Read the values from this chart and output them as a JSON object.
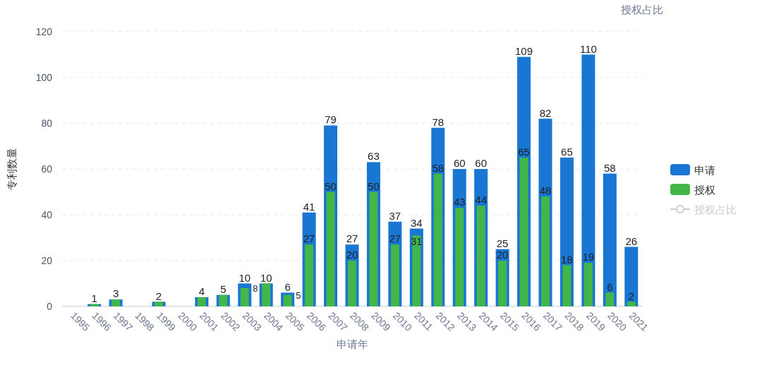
{
  "chart_data": {
    "type": "bar",
    "xlabel": "申请年",
    "ylabel": "专利数量",
    "y2label": "授权占比",
    "categories": [
      "1995",
      "1996",
      "1997",
      "1998",
      "1999",
      "2000",
      "2001",
      "2002",
      "2003",
      "2004",
      "2005",
      "2006",
      "2007",
      "2008",
      "2009",
      "2010",
      "2011",
      "2012",
      "2013",
      "2014",
      "2015",
      "2016",
      "2017",
      "2018",
      "2019",
      "2020",
      "2021"
    ],
    "series": [
      {
        "name": "申请",
        "color": "#1976d2",
        "values": [
          null,
          1,
          3,
          null,
          2,
          null,
          4,
          5,
          10,
          10,
          6,
          41,
          79,
          27,
          63,
          37,
          34,
          78,
          60,
          60,
          25,
          109,
          82,
          65,
          110,
          58,
          26
        ]
      },
      {
        "name": "授权",
        "color": "#43b649",
        "values": [
          null,
          1,
          3,
          null,
          2,
          null,
          4,
          5,
          8,
          10,
          5,
          27,
          50,
          20,
          50,
          27,
          31,
          58,
          43,
          44,
          20,
          65,
          48,
          18,
          19,
          6,
          2
        ],
        "value_labels": [
          null,
          null,
          null,
          null,
          null,
          null,
          null,
          null,
          "8",
          null,
          "5",
          "27",
          "50",
          "20",
          "50",
          "27",
          "31",
          "58",
          "43",
          "44",
          "20",
          "65",
          "48",
          "18",
          "19",
          "6",
          "2"
        ]
      },
      {
        "name": "授权占比",
        "type": "line",
        "color": "#cccccc",
        "marker": "circle",
        "values": [
          null,
          null,
          null,
          null,
          null,
          null,
          null,
          null,
          null,
          null,
          null,
          null,
          null,
          null,
          null,
          null,
          null,
          null,
          null,
          null,
          null,
          null,
          null,
          null,
          null,
          null,
          null
        ]
      }
    ],
    "ylim": [
      0,
      120
    ],
    "yticks": [
      0,
      20,
      40,
      60,
      80,
      100,
      120
    ],
    "grid": "y",
    "legend": "right",
    "data_labels": true
  }
}
